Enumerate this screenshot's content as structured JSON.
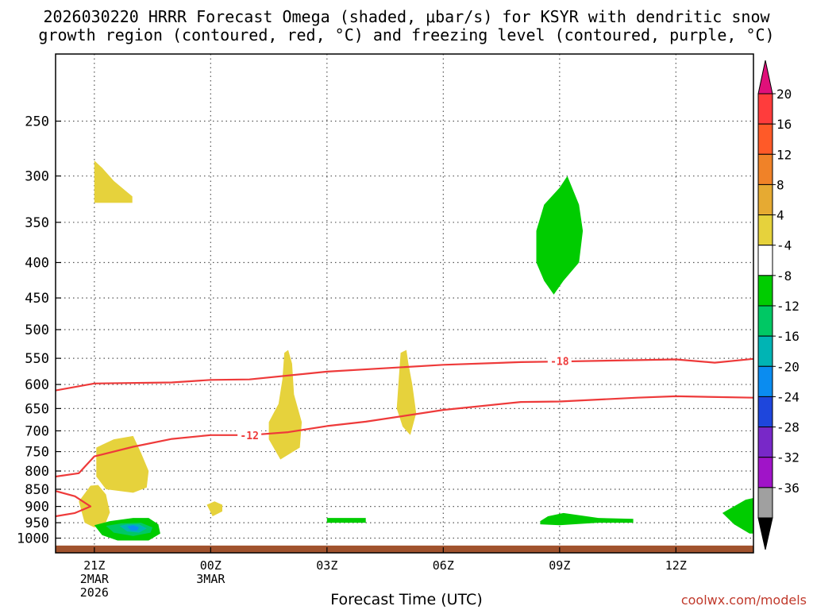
{
  "chart_data": {
    "type": "heatmap",
    "title_line1": "2026030220 HRRR Forecast Omega (shaded, μbar/s) for KSYR with dendritic snow",
    "title_line2": "growth region (contoured, red, °C) and freezing level (contoured, purple, °C)",
    "xlabel": "Forecast Time (UTC)",
    "ylabel": "",
    "x_unit": "forecast hours from 2026-03-02 20Z",
    "xlim": [
      0,
      18
    ],
    "y_scale": "log",
    "ylim": [
      1050,
      200
    ],
    "y_ticks": [
      250,
      300,
      350,
      400,
      450,
      500,
      550,
      600,
      650,
      700,
      750,
      800,
      850,
      900,
      950,
      1000
    ],
    "x_ticks": [
      {
        "x": 1,
        "lines": [
          "21Z",
          "2MAR",
          "2026"
        ]
      },
      {
        "x": 4,
        "lines": [
          "00Z",
          "3MAR"
        ]
      },
      {
        "x": 7,
        "lines": [
          "03Z"
        ]
      },
      {
        "x": 10,
        "lines": [
          "06Z"
        ]
      },
      {
        "x": 13,
        "lines": [
          "09Z"
        ]
      },
      {
        "x": 16,
        "lines": [
          "12Z"
        ]
      }
    ],
    "grid": true,
    "colorbar": {
      "labels": [
        "20",
        "16",
        "12",
        "8",
        "4",
        "-4",
        "-8",
        "-12",
        "-16",
        "-20",
        "-24",
        "-28",
        "-32",
        "-36"
      ],
      "top_arrow_color": "#e0107a",
      "bottom_arrow_color": "#000000",
      "bins": [
        "#ff3c3c",
        "#ff5a28",
        "#f08228",
        "#e6aa32",
        "#e6d23c",
        "#ffffff",
        "#00cc00",
        "#00c864",
        "#00b4b4",
        "#0a8cf0",
        "#1e46dc",
        "#7828c8",
        "#a014c8",
        "#a0a0a0"
      ]
    },
    "contours": [
      {
        "label": "-18",
        "color": "#ee3a3a",
        "label_at": [
          13,
          555
        ],
        "points": [
          [
            0,
            612
          ],
          [
            1,
            598
          ],
          [
            3,
            596
          ],
          [
            4,
            591
          ],
          [
            5,
            590
          ],
          [
            7,
            575
          ],
          [
            10,
            562
          ],
          [
            12,
            557
          ],
          [
            13,
            556
          ],
          [
            16,
            552
          ],
          [
            17,
            558
          ],
          [
            18,
            551
          ]
        ]
      },
      {
        "label": "-12",
        "color": "#ee3a3a",
        "label_at": [
          5,
          710
        ],
        "points": [
          [
            0,
            815
          ],
          [
            0.6,
            806
          ],
          [
            1,
            762
          ],
          [
            2,
            738
          ],
          [
            3,
            719
          ],
          [
            4,
            710
          ],
          [
            5,
            710
          ],
          [
            6,
            703
          ],
          [
            7,
            689
          ],
          [
            8,
            679
          ],
          [
            10,
            653
          ],
          [
            12,
            636
          ],
          [
            13,
            635
          ],
          [
            15,
            627
          ],
          [
            16,
            624
          ],
          [
            18,
            627
          ]
        ]
      },
      {
        "label": "",
        "color": "#ee3a3a",
        "points": [
          [
            0,
            855
          ],
          [
            0.5,
            870
          ],
          [
            0.9,
            900
          ],
          [
            0.5,
            920
          ],
          [
            0,
            930
          ]
        ]
      }
    ],
    "regions": [
      {
        "color": "#e6d23c",
        "points": [
          [
            1,
            320
          ],
          [
            1,
            285
          ],
          [
            1.2,
            292
          ],
          [
            1.5,
            305
          ],
          [
            1.8,
            315
          ],
          [
            1.98,
            321
          ],
          [
            1.98,
            328
          ],
          [
            1,
            328
          ]
        ]
      },
      {
        "color": "#00cc00",
        "points": [
          [
            13,
            312
          ],
          [
            12.6,
            330
          ],
          [
            12.4,
            360
          ],
          [
            12.4,
            400
          ],
          [
            12.6,
            425
          ],
          [
            12.85,
            445
          ],
          [
            13.1,
            425
          ],
          [
            13.5,
            400
          ],
          [
            13.6,
            360
          ],
          [
            13.5,
            330
          ],
          [
            13.2,
            300
          ]
        ]
      },
      {
        "color": "#e6d23c",
        "points": [
          [
            5.9,
            540
          ],
          [
            5.85,
            590
          ],
          [
            5.75,
            640
          ],
          [
            5.5,
            680
          ],
          [
            5.5,
            720
          ],
          [
            5.8,
            770
          ],
          [
            6.3,
            740
          ],
          [
            6.35,
            680
          ],
          [
            6.15,
            620
          ],
          [
            6.1,
            560
          ],
          [
            6,
            535
          ]
        ]
      },
      {
        "color": "#e6d23c",
        "points": [
          [
            8.9,
            540
          ],
          [
            8.85,
            590
          ],
          [
            8.8,
            650
          ],
          [
            8.95,
            690
          ],
          [
            9.15,
            710
          ],
          [
            9.3,
            660
          ],
          [
            9.2,
            600
          ],
          [
            9.1,
            560
          ],
          [
            9.05,
            535
          ]
        ]
      },
      {
        "color": "#e6d23c",
        "points": [
          [
            1.05,
            740
          ],
          [
            1.05,
            815
          ],
          [
            1.3,
            850
          ],
          [
            2,
            860
          ],
          [
            2.35,
            845
          ],
          [
            2.4,
            800
          ],
          [
            2.2,
            752
          ],
          [
            2,
            712
          ],
          [
            1.5,
            720
          ]
        ]
      },
      {
        "color": "#e6d23c",
        "points": [
          [
            0.6,
            885
          ],
          [
            0.75,
            950
          ],
          [
            1,
            965
          ],
          [
            1.3,
            948
          ],
          [
            1.4,
            918
          ],
          [
            1.3,
            865
          ],
          [
            1.1,
            838
          ],
          [
            0.9,
            840
          ]
        ]
      },
      {
        "color": "#e6d23c",
        "points": [
          [
            3.9,
            895
          ],
          [
            4.05,
            930
          ],
          [
            4.3,
            915
          ],
          [
            4.3,
            895
          ],
          [
            4.1,
            885
          ]
        ]
      },
      {
        "color": "#00cc00",
        "points": [
          [
            1,
            958
          ],
          [
            1.2,
            990
          ],
          [
            1.6,
            1008
          ],
          [
            2.4,
            1008
          ],
          [
            2.7,
            985
          ],
          [
            2.65,
            955
          ],
          [
            2.4,
            935
          ],
          [
            2,
            935
          ],
          [
            1.4,
            945
          ]
        ]
      },
      {
        "color": "#00c864",
        "points": [
          [
            1.3,
            960
          ],
          [
            1.5,
            982
          ],
          [
            2,
            993
          ],
          [
            2.45,
            982
          ],
          [
            2.5,
            965
          ],
          [
            2.2,
            950
          ],
          [
            1.7,
            952
          ]
        ]
      },
      {
        "color": "#00b4b4",
        "points": [
          [
            1.65,
            960
          ],
          [
            1.85,
            978
          ],
          [
            2.15,
            982
          ],
          [
            2.35,
            968
          ],
          [
            2.15,
            955
          ],
          [
            1.85,
            955
          ]
        ]
      },
      {
        "color": "#0a8cf0",
        "points": [
          [
            1.85,
            962
          ],
          [
            1.95,
            975
          ],
          [
            2.1,
            975
          ],
          [
            2.15,
            965
          ],
          [
            2,
            958
          ]
        ]
      },
      {
        "color": "#00cc00",
        "points": [
          [
            7,
            935
          ],
          [
            8,
            935
          ],
          [
            8,
            950
          ],
          [
            7,
            950
          ]
        ]
      },
      {
        "color": "#00cc00",
        "points": [
          [
            12.5,
            945
          ],
          [
            12.7,
            930
          ],
          [
            13.1,
            920
          ],
          [
            14,
            935
          ],
          [
            14.9,
            938
          ],
          [
            14.9,
            950
          ],
          [
            14,
            950
          ],
          [
            13,
            958
          ],
          [
            12.5,
            955
          ]
        ]
      },
      {
        "color": "#00cc00",
        "points": [
          [
            17.2,
            920
          ],
          [
            17.8,
            880
          ],
          [
            18,
            875
          ],
          [
            18,
            985
          ],
          [
            17.9,
            985
          ],
          [
            17.5,
            955
          ]
        ]
      }
    ],
    "ground": {
      "color": "#a0522d",
      "pressure": 1025
    }
  },
  "credit": "coolwx.com/models"
}
